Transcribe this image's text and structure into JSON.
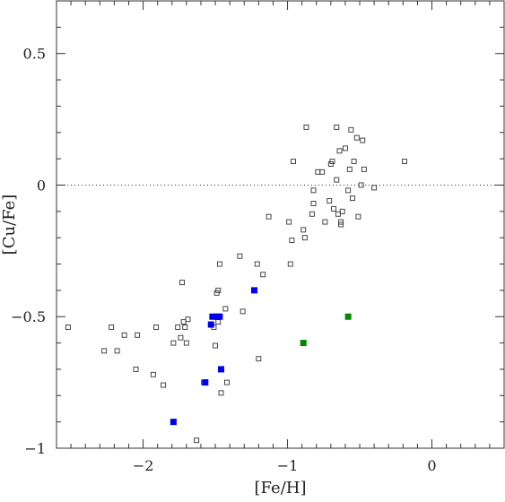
{
  "chart_data": {
    "type": "scatter",
    "title": "",
    "xlabel": "[Fe/H]",
    "ylabel": "[Cu/Fe]",
    "xlim": [
      -2.6,
      0.5
    ],
    "ylim": [
      -1.0,
      0.7
    ],
    "x_ticks": [
      {
        "value": -2,
        "label": "−2"
      },
      {
        "value": -1,
        "label": "−1"
      },
      {
        "value": 0,
        "label": "0"
      }
    ],
    "y_ticks": [
      {
        "value": -1,
        "label": "−1"
      },
      {
        "value": -0.5,
        "label": "−0.5"
      },
      {
        "value": 0,
        "label": "0"
      },
      {
        "value": 0.5,
        "label": "0.5"
      }
    ],
    "reference_line": {
      "y": 0,
      "style": "dotted"
    },
    "grid": false,
    "series": [
      {
        "marker": "open-square",
        "color": "#333333",
        "points": [
          [
            -2.52,
            -0.54
          ],
          [
            -2.27,
            -0.63
          ],
          [
            -2.22,
            -0.54
          ],
          [
            -2.18,
            -0.63
          ],
          [
            -2.13,
            -0.57
          ],
          [
            -2.05,
            -0.7
          ],
          [
            -2.04,
            -0.57
          ],
          [
            -1.93,
            -0.72
          ],
          [
            -1.91,
            -0.54
          ],
          [
            -1.86,
            -0.76
          ],
          [
            -1.79,
            -0.6
          ],
          [
            -1.76,
            -0.54
          ],
          [
            -1.74,
            -0.58
          ],
          [
            -1.73,
            -0.37
          ],
          [
            -1.72,
            -0.52
          ],
          [
            -1.71,
            -0.54
          ],
          [
            -1.7,
            -0.6
          ],
          [
            -1.69,
            -0.51
          ],
          [
            -1.63,
            -0.97
          ],
          [
            -1.58,
            -0.75
          ],
          [
            -1.51,
            -0.54
          ],
          [
            -1.5,
            -0.61
          ],
          [
            -1.49,
            -0.41
          ],
          [
            -1.48,
            -0.4
          ],
          [
            -1.48,
            -0.52
          ],
          [
            -1.47,
            -0.3
          ],
          [
            -1.46,
            -0.79
          ],
          [
            -1.43,
            -0.47
          ],
          [
            -1.42,
            -0.75
          ],
          [
            -1.33,
            -0.27
          ],
          [
            -1.31,
            -0.48
          ],
          [
            -1.21,
            -0.3
          ],
          [
            -1.2,
            -0.66
          ],
          [
            -1.17,
            -0.34
          ],
          [
            -1.13,
            -0.12
          ],
          [
            -0.99,
            -0.14
          ],
          [
            -0.98,
            -0.3
          ],
          [
            -0.97,
            -0.21
          ],
          [
            -0.96,
            0.09
          ],
          [
            -0.89,
            -0.17
          ],
          [
            -0.88,
            -0.2
          ],
          [
            -0.87,
            0.22
          ],
          [
            -0.83,
            -0.11
          ],
          [
            -0.82,
            -0.07
          ],
          [
            -0.82,
            -0.02
          ],
          [
            -0.79,
            0.05
          ],
          [
            -0.76,
            0.05
          ],
          [
            -0.74,
            -0.14
          ],
          [
            -0.71,
            -0.06
          ],
          [
            -0.7,
            0.08
          ],
          [
            -0.69,
            0.09
          ],
          [
            -0.68,
            -0.09
          ],
          [
            -0.66,
            0.02
          ],
          [
            -0.66,
            0.22
          ],
          [
            -0.65,
            -0.11
          ],
          [
            -0.64,
            0.13
          ],
          [
            -0.63,
            -0.15
          ],
          [
            -0.63,
            -0.14
          ],
          [
            -0.62,
            -0.1
          ],
          [
            -0.6,
            0.14
          ],
          [
            -0.58,
            -0.02
          ],
          [
            -0.57,
            0.06
          ],
          [
            -0.56,
            0.21
          ],
          [
            -0.55,
            -0.05
          ],
          [
            -0.54,
            0.09
          ],
          [
            -0.52,
            0.18
          ],
          [
            -0.51,
            -0.12
          ],
          [
            -0.49,
            0.0
          ],
          [
            -0.48,
            0.17
          ],
          [
            -0.47,
            0.06
          ],
          [
            -0.4,
            -0.01
          ],
          [
            -0.19,
            0.09
          ]
        ]
      },
      {
        "marker": "filled-square",
        "color": "#0000ee",
        "points": [
          [
            -1.79,
            -0.9
          ],
          [
            -1.57,
            -0.75
          ],
          [
            -1.53,
            -0.53
          ],
          [
            -1.52,
            -0.5
          ],
          [
            -1.49,
            -0.5
          ],
          [
            -1.47,
            -0.5
          ],
          [
            -1.46,
            -0.7
          ],
          [
            -1.23,
            -0.4
          ]
        ]
      },
      {
        "marker": "filled-square",
        "color": "#008800",
        "points": [
          [
            -0.89,
            -0.6
          ],
          [
            -0.58,
            -0.5
          ]
        ]
      }
    ]
  }
}
